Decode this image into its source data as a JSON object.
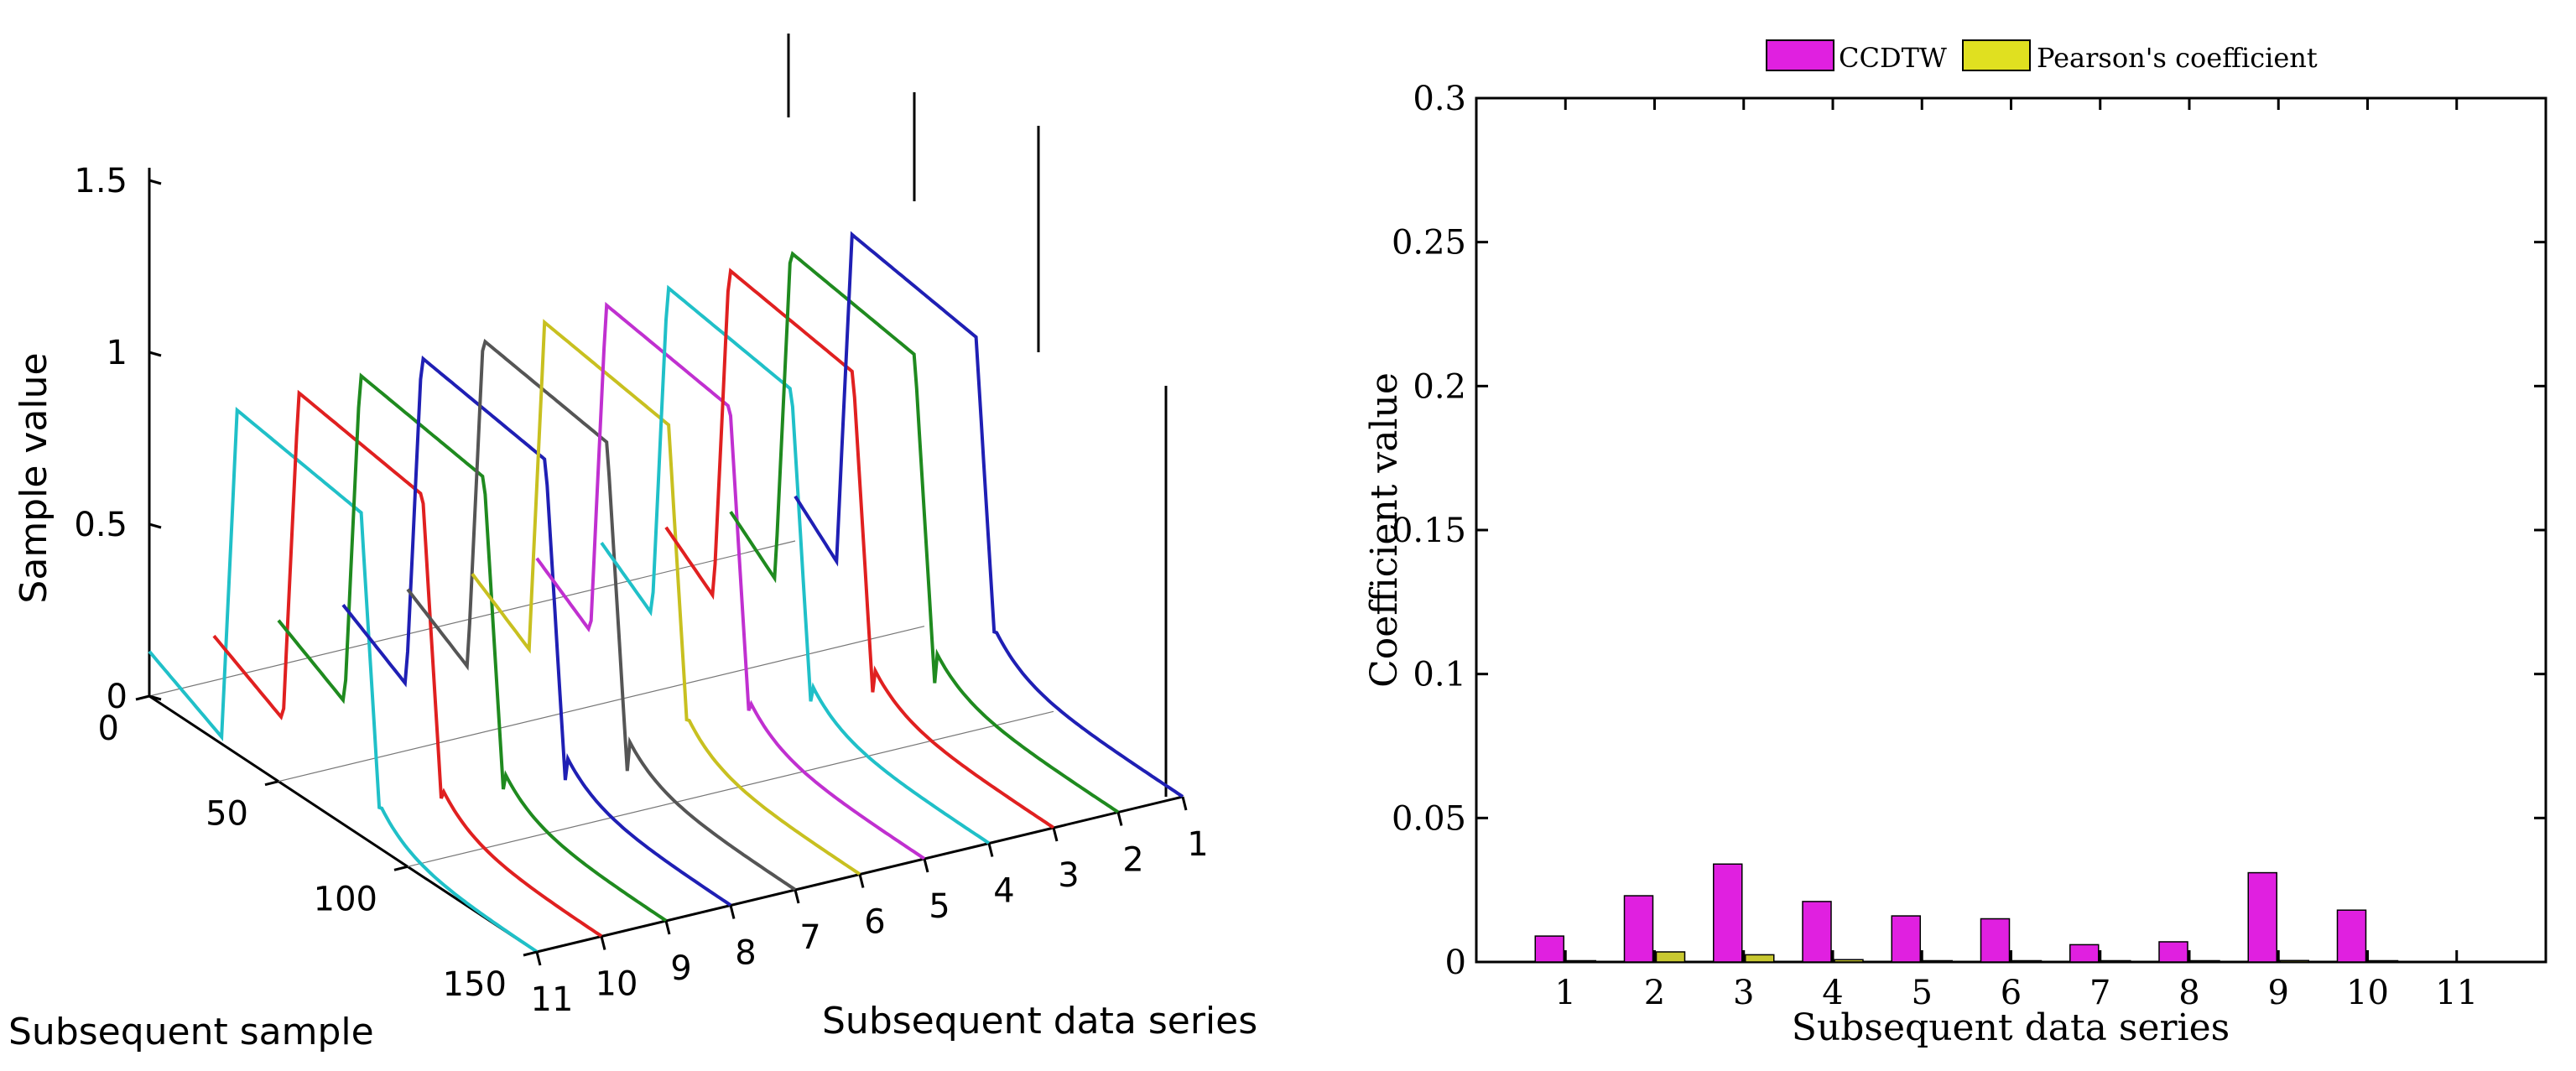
{
  "chart_data": [
    {
      "type": "line",
      "subtype": "waterfall-3d",
      "title": "",
      "xlabel": "Subsequent sample",
      "ylabel": "Subsequent data series",
      "zlabel": "Sample value",
      "x_ticks": [
        "0",
        "50",
        "100",
        "150"
      ],
      "y_ticks": [
        "1",
        "2",
        "3",
        "4",
        "5",
        "6",
        "7",
        "8",
        "9",
        "10",
        "11"
      ],
      "z_ticks": [
        "0",
        "0.5",
        "1",
        "1.5"
      ],
      "xlim": [
        0,
        150
      ],
      "zlim": [
        0,
        1.5
      ],
      "series": [
        {
          "name": "1",
          "color": "#1f1fb4",
          "plateau": 1.0
        },
        {
          "name": "2",
          "color": "#1f8a1f",
          "plateau": 1.0
        },
        {
          "name": "3",
          "color": "#e02020",
          "plateau": 1.0
        },
        {
          "name": "4",
          "color": "#20c0c8",
          "plateau": 1.0
        },
        {
          "name": "5",
          "color": "#c030d0",
          "plateau": 1.0
        },
        {
          "name": "6",
          "color": "#c8c020",
          "plateau": 1.0
        },
        {
          "name": "7",
          "color": "#555555",
          "plateau": 1.0
        },
        {
          "name": "8",
          "color": "#1f1fb4",
          "plateau": 1.0
        },
        {
          "name": "9",
          "color": "#1f8a1f",
          "plateau": 1.0
        },
        {
          "name": "10",
          "color": "#e02020",
          "plateau": 1.0
        },
        {
          "name": "11",
          "color": "#20c0c8",
          "plateau": 1.0
        }
      ]
    },
    {
      "type": "bar",
      "title": "",
      "xlabel": "Subsequent data series",
      "ylabel": "Coefficient value",
      "categories": [
        "1",
        "2",
        "3",
        "4",
        "5",
        "6",
        "7",
        "8",
        "9",
        "10"
      ],
      "x_ticks": [
        "1",
        "2",
        "3",
        "4",
        "5",
        "6",
        "7",
        "8",
        "9",
        "10",
        "11"
      ],
      "y_ticks": [
        "0",
        "0.05",
        "0.1",
        "0.15",
        "0.2",
        "0.25",
        "0.3"
      ],
      "ylim": [
        0,
        0.3
      ],
      "legend_position": "top",
      "series": [
        {
          "name": "CCDTW",
          "color": "#e020e0",
          "values": [
            0.009,
            0.023,
            0.034,
            0.021,
            0.016,
            0.015,
            0.006,
            0.007,
            0.031,
            0.018
          ]
        },
        {
          "name": "Pearson's coefficient",
          "color": "#c8c830",
          "values": [
            0.0002,
            0.0035,
            0.0025,
            0.0008,
            0.0002,
            0.0002,
            0.0002,
            0.0002,
            0.0005,
            0.0002
          ]
        }
      ]
    }
  ]
}
